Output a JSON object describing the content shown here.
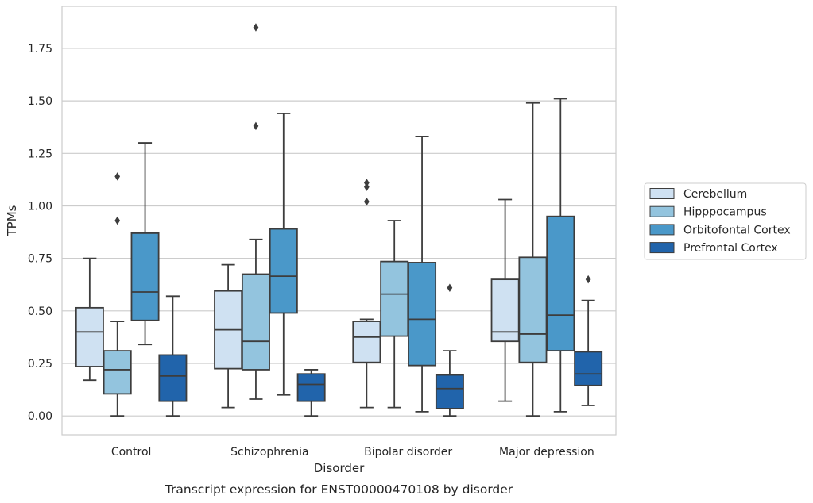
{
  "chart_data": {
    "type": "box",
    "caption": "Transcript expression for ENST00000470108 by disorder",
    "xlabel": "Disorder",
    "ylabel": "TPMs",
    "ylim": [
      -0.09,
      1.95
    ],
    "yticks": [
      "0.00",
      "0.25",
      "0.50",
      "0.75",
      "1.00",
      "1.25",
      "1.50",
      "1.75"
    ],
    "ytick_values": [
      0,
      0.25,
      0.5,
      0.75,
      1.0,
      1.25,
      1.5,
      1.75
    ],
    "grid": "horizontal",
    "legend_position": "right",
    "categories": [
      "Control",
      "Schizophrenia",
      "Bipolar disorder",
      "Major depression"
    ],
    "series": [
      {
        "name": "Cerebellum",
        "color": "#cfe1f2",
        "boxes": [
          {
            "q1": 0.235,
            "median": 0.4,
            "q3": 0.515,
            "whislo": 0.17,
            "whishi": 0.75,
            "fliers": []
          },
          {
            "q1": 0.225,
            "median": 0.41,
            "q3": 0.595,
            "whislo": 0.04,
            "whishi": 0.72,
            "fliers": []
          },
          {
            "q1": 0.255,
            "median": 0.375,
            "q3": 0.45,
            "whislo": 0.04,
            "whishi": 0.46,
            "fliers": [
              1.02,
              1.09,
              1.11
            ]
          },
          {
            "q1": 0.355,
            "median": 0.4,
            "q3": 0.65,
            "whislo": 0.07,
            "whishi": 1.03,
            "fliers": []
          }
        ]
      },
      {
        "name": "Hipppocampus",
        "color": "#93c4de",
        "boxes": [
          {
            "q1": 0.105,
            "median": 0.22,
            "q3": 0.31,
            "whislo": 0.0,
            "whishi": 0.45,
            "fliers": [
              0.93,
              1.14
            ]
          },
          {
            "q1": 0.22,
            "median": 0.355,
            "q3": 0.675,
            "whislo": 0.08,
            "whishi": 0.84,
            "fliers": [
              1.38,
              1.85
            ]
          },
          {
            "q1": 0.38,
            "median": 0.58,
            "q3": 0.735,
            "whislo": 0.04,
            "whishi": 0.93,
            "fliers": []
          },
          {
            "q1": 0.255,
            "median": 0.39,
            "q3": 0.755,
            "whislo": 0.0,
            "whishi": 1.49,
            "fliers": []
          }
        ]
      },
      {
        "name": "Orbitofontal Cortex",
        "color": "#4a98c9",
        "boxes": [
          {
            "q1": 0.455,
            "median": 0.59,
            "q3": 0.87,
            "whislo": 0.34,
            "whishi": 1.3,
            "fliers": []
          },
          {
            "q1": 0.49,
            "median": 0.665,
            "q3": 0.89,
            "whislo": 0.1,
            "whishi": 1.44,
            "fliers": []
          },
          {
            "q1": 0.24,
            "median": 0.46,
            "q3": 0.73,
            "whislo": 0.02,
            "whishi": 1.33,
            "fliers": []
          },
          {
            "q1": 0.31,
            "median": 0.48,
            "q3": 0.95,
            "whislo": 0.02,
            "whishi": 1.51,
            "fliers": []
          }
        ]
      },
      {
        "name": "Prefrontal Cortex",
        "color": "#2164ab",
        "boxes": [
          {
            "q1": 0.07,
            "median": 0.19,
            "q3": 0.29,
            "whislo": 0.0,
            "whishi": 0.57,
            "fliers": []
          },
          {
            "q1": 0.07,
            "median": 0.15,
            "q3": 0.2,
            "whislo": 0.0,
            "whishi": 0.22,
            "fliers": []
          },
          {
            "q1": 0.035,
            "median": 0.13,
            "q3": 0.195,
            "whislo": 0.0,
            "whishi": 0.31,
            "fliers": [
              0.61
            ]
          },
          {
            "q1": 0.145,
            "median": 0.2,
            "q3": 0.305,
            "whislo": 0.05,
            "whishi": 0.55,
            "fliers": [
              0.65
            ]
          }
        ]
      }
    ]
  }
}
